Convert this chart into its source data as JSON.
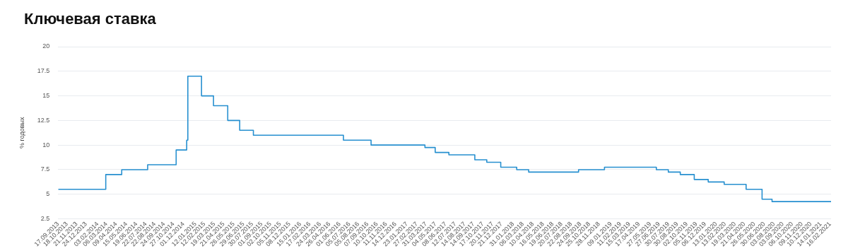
{
  "chart_data": {
    "type": "step",
    "title": "Ключевая ставка",
    "ylabel": "% годовых",
    "x": [
      "2013-09-17",
      "2014-03-03",
      "2014-04-28",
      "2014-07-28",
      "2014-11-05",
      "2014-12-12",
      "2014-12-16",
      "2015-02-02",
      "2015-03-16",
      "2015-05-05",
      "2015-06-16",
      "2015-08-03",
      "2016-06-14",
      "2016-09-19",
      "2017-03-27",
      "2017-05-02",
      "2017-06-19",
      "2017-09-18",
      "2017-10-30",
      "2017-12-18",
      "2018-02-12",
      "2018-03-26",
      "2018-09-17",
      "2018-12-17",
      "2019-06-17",
      "2019-07-29",
      "2019-09-09",
      "2019-10-28",
      "2019-12-16",
      "2020-02-10",
      "2020-04-27",
      "2020-06-22",
      "2020-07-27",
      "2021-02-19"
    ],
    "series": [
      {
        "color": "#2790d0",
        "values": [
          5.5,
          7,
          7.5,
          8,
          9.5,
          10.5,
          17,
          15,
          14,
          12.5,
          11.5,
          11,
          10.5,
          10,
          9.75,
          9.25,
          9,
          8.5,
          8.25,
          7.75,
          7.5,
          7.25,
          7.5,
          7.75,
          7.5,
          7.25,
          7,
          6.5,
          6.25,
          6,
          5.5,
          4.5,
          4.25,
          4.25
        ]
      }
    ],
    "xlim": [
      "2013-09-17",
      "2021-02-19"
    ],
    "xticks": [
      {
        "value": "2013-09-17",
        "label": "17.09.2013"
      },
      {
        "value": "2013-10-18",
        "label": "18.10.2013"
      },
      {
        "value": "2013-11-21",
        "label": "21.11.2013"
      },
      {
        "value": "2013-12-24",
        "label": "24.12.2013"
      },
      {
        "value": "2014-02-03",
        "label": "03.02.2014"
      },
      {
        "value": "2014-03-06",
        "label": "06.03.2014"
      },
      {
        "value": "2014-04-09",
        "label": "09.04.2014"
      },
      {
        "value": "2014-05-15",
        "label": "15.05.2014"
      },
      {
        "value": "2014-06-19",
        "label": "19.06.2014"
      },
      {
        "value": "2014-07-22",
        "label": "22.07.2014"
      },
      {
        "value": "2014-08-22",
        "label": "22.08.2014"
      },
      {
        "value": "2014-09-24",
        "label": "24.09.2014"
      },
      {
        "value": "2014-10-27",
        "label": "27.10.2014"
      },
      {
        "value": "2014-12-01",
        "label": "01.12.2014"
      },
      {
        "value": "2015-01-12",
        "label": "12.01.2015"
      },
      {
        "value": "2015-02-12",
        "label": "12.02.2015"
      },
      {
        "value": "2015-03-19",
        "label": "19.03.2015"
      },
      {
        "value": "2015-04-21",
        "label": "21.04.2015"
      },
      {
        "value": "2015-05-26",
        "label": "26.05.2015"
      },
      {
        "value": "2015-06-29",
        "label": "29.06.2015"
      },
      {
        "value": "2015-07-30",
        "label": "30.07.2015"
      },
      {
        "value": "2015-09-01",
        "label": "01.09.2015"
      },
      {
        "value": "2015-10-02",
        "label": "02.10.2015"
      },
      {
        "value": "2015-11-05",
        "label": "05.11.2015"
      },
      {
        "value": "2015-12-08",
        "label": "08.12.2015"
      },
      {
        "value": "2016-01-15",
        "label": "15.01.2016"
      },
      {
        "value": "2016-02-17",
        "label": "17.02.2016"
      },
      {
        "value": "2016-03-24",
        "label": "24.03.2016"
      },
      {
        "value": "2016-04-26",
        "label": "26.04.2016"
      },
      {
        "value": "2016-06-01",
        "label": "01.06.2016"
      },
      {
        "value": "2016-07-05",
        "label": "05.07.2016"
      },
      {
        "value": "2016-08-05",
        "label": "05.08.2016"
      },
      {
        "value": "2016-09-07",
        "label": "07.09.2016"
      },
      {
        "value": "2016-10-10",
        "label": "10.10.2016"
      },
      {
        "value": "2016-11-11",
        "label": "11.11.2016"
      },
      {
        "value": "2016-12-14",
        "label": "14.12.2016"
      },
      {
        "value": "2017-01-23",
        "label": "23.01.2017"
      },
      {
        "value": "2017-02-27",
        "label": "27.02.2017"
      },
      {
        "value": "2017-03-31",
        "label": "31.03.2017"
      },
      {
        "value": "2017-05-04",
        "label": "04.05.2017"
      },
      {
        "value": "2017-06-08",
        "label": "08.06.2017"
      },
      {
        "value": "2017-07-12",
        "label": "12.07.2017"
      },
      {
        "value": "2017-08-14",
        "label": "14.08.2017"
      },
      {
        "value": "2017-09-14",
        "label": "14.09.2017"
      },
      {
        "value": "2017-10-17",
        "label": "17.10.2017"
      },
      {
        "value": "2017-11-20",
        "label": "20.11.2017"
      },
      {
        "value": "2017-12-21",
        "label": "21.12.2017"
      },
      {
        "value": "2018-01-31",
        "label": "31.01.2018"
      },
      {
        "value": "2018-03-06",
        "label": "06.03.2018"
      },
      {
        "value": "2018-04-10",
        "label": "10.04.2018"
      },
      {
        "value": "2018-05-16",
        "label": "16.05.2018"
      },
      {
        "value": "2018-06-19",
        "label": "19.06.2018"
      },
      {
        "value": "2018-07-20",
        "label": "20.07.2018"
      },
      {
        "value": "2018-08-22",
        "label": "22.08.2018"
      },
      {
        "value": "2018-09-24",
        "label": "24.09.2018"
      },
      {
        "value": "2018-10-25",
        "label": "25.10.2018"
      },
      {
        "value": "2018-11-28",
        "label": "28.11.2018"
      },
      {
        "value": "2019-01-09",
        "label": "09.01.2019"
      },
      {
        "value": "2019-02-11",
        "label": "11.02.2019"
      },
      {
        "value": "2019-03-15",
        "label": "15.03.2019"
      },
      {
        "value": "2019-04-17",
        "label": "17.04.2019"
      },
      {
        "value": "2019-05-27",
        "label": "27.05.2019"
      },
      {
        "value": "2019-06-27",
        "label": "27.06.2019"
      },
      {
        "value": "2019-07-30",
        "label": "30.07.2019"
      },
      {
        "value": "2019-08-30",
        "label": "30.08.2019"
      },
      {
        "value": "2019-10-02",
        "label": "02.10.2019"
      },
      {
        "value": "2019-11-05",
        "label": "05.11.2019"
      },
      {
        "value": "2019-12-06",
        "label": "06.12.2019"
      },
      {
        "value": "2020-01-13",
        "label": "13.01.2020"
      },
      {
        "value": "2020-02-13",
        "label": "13.02.2020"
      },
      {
        "value": "2020-03-19",
        "label": "19.03.2020"
      },
      {
        "value": "2020-04-21",
        "label": "21.04.2020"
      },
      {
        "value": "2020-05-26",
        "label": "26.05.2020"
      },
      {
        "value": "2020-06-30",
        "label": "30.06.2020"
      },
      {
        "value": "2020-08-03",
        "label": "03.08.2020"
      },
      {
        "value": "2020-09-03",
        "label": "03.09.2020"
      },
      {
        "value": "2020-10-06",
        "label": "06.10.2020"
      },
      {
        "value": "2020-11-09",
        "label": "09.11.2020"
      },
      {
        "value": "2020-12-10",
        "label": "10.12.2020"
      },
      {
        "value": "2021-01-14",
        "label": "14.01.2021"
      },
      {
        "value": "2021-02-16",
        "label": "16.02.2021"
      }
    ],
    "ylim": [
      2.5,
      20
    ],
    "yticks": [
      2.5,
      5,
      7.5,
      10,
      12.5,
      15,
      17.5,
      20
    ],
    "grid": "y"
  }
}
